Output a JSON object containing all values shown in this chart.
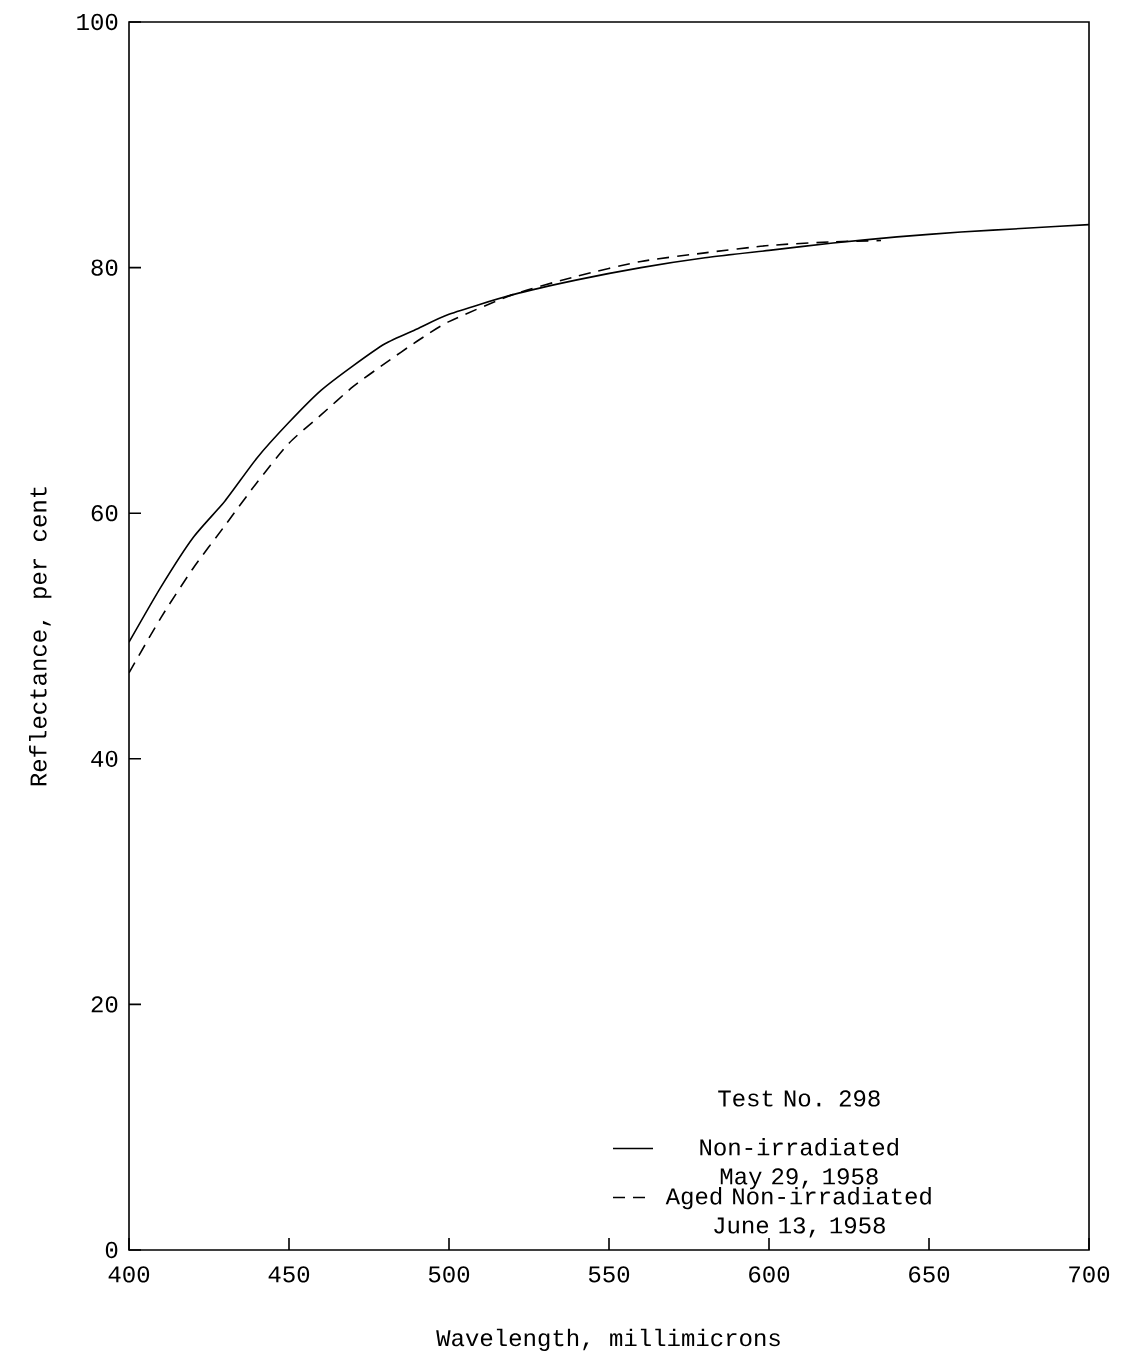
{
  "chart_data": {
    "type": "line",
    "title": null,
    "xlabel": "Wavelength,  millimicrons",
    "ylabel": "Reflectance,  per cent",
    "legend_title": "Test No. 298",
    "xlim": [
      400,
      700
    ],
    "ylim": [
      0,
      100
    ],
    "xticks": [
      400,
      450,
      500,
      550,
      600,
      650,
      700
    ],
    "yticks": [
      0,
      20,
      40,
      60,
      80,
      100
    ],
    "grid": false,
    "legend": "bottom right",
    "marker": "none",
    "series": [
      {
        "name": "Non-irradiated May 29, 1958",
        "color": "#000000",
        "line_style": "solid",
        "x": [
          400,
          410,
          420,
          430,
          440,
          450,
          460,
          470,
          480,
          490,
          500,
          520,
          540,
          560,
          580,
          600,
          620,
          640,
          660,
          680,
          700
        ],
        "values": [
          49.5,
          54.0,
          58.0,
          61.0,
          64.5,
          67.4,
          70.0,
          72.0,
          73.8,
          75.0,
          76.2,
          77.8,
          79.0,
          80.0,
          80.8,
          81.4,
          82.0,
          82.5,
          82.9,
          83.2,
          83.5
        ]
      },
      {
        "name": "Aged Non-irradiated June 13, 1958",
        "color": "#000000",
        "line_style": "dashed",
        "x": [
          400,
          410,
          420,
          430,
          440,
          450,
          460,
          470,
          480,
          490,
          500,
          520,
          540,
          560,
          580,
          600,
          620,
          635
        ],
        "values": [
          47.0,
          51.5,
          55.5,
          59.0,
          62.5,
          65.7,
          68.0,
          70.3,
          72.2,
          74.0,
          75.6,
          77.8,
          79.3,
          80.5,
          81.2,
          81.8,
          82.1,
          82.2
        ]
      }
    ]
  }
}
